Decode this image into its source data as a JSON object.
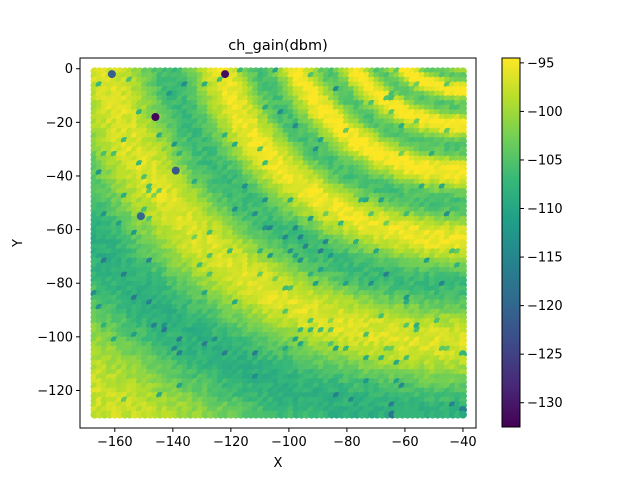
{
  "chart_data": {
    "type": "heatmap",
    "title": "ch_gain(dbm)",
    "xlabel": "X",
    "ylabel": "Y",
    "xlim": [
      -172,
      -35.5
    ],
    "ylim": [
      -134,
      4
    ],
    "xticks": [
      -160,
      -140,
      -120,
      -100,
      -80,
      -60,
      -40
    ],
    "xtick_labels": [
      "−160",
      "−140",
      "−120",
      "−100",
      "−80",
      "−60",
      "−40"
    ],
    "yticks": [
      0,
      -20,
      -40,
      -60,
      -80,
      -100,
      -120
    ],
    "ytick_labels": [
      "0",
      "−20",
      "−40",
      "−60",
      "−80",
      "−100",
      "−120"
    ],
    "grid": false,
    "point_grid": {
      "x_range": [
        -167,
        -40
      ],
      "y_range": [
        -129,
        -1
      ],
      "columns": 74,
      "rows": 75
    },
    "wave_source": [
      -40,
      22
    ],
    "colorbar": {
      "colormap": "viridis",
      "range": [
        -132.5,
        -94.5
      ],
      "ticks": [
        -95,
        -100,
        -105,
        -110,
        -115,
        -120,
        -125,
        -130
      ],
      "tick_labels": [
        "−95",
        "−100",
        "−105",
        "−110",
        "−115",
        "−120",
        "−125",
        "−130"
      ],
      "stops": [
        "#440154",
        "#482878",
        "#3e4989",
        "#31688e",
        "#26828e",
        "#1f9e89",
        "#35b779",
        "#6ece58",
        "#b5de2b",
        "#fde725"
      ]
    },
    "deep_fade_points": [
      {
        "x": -122,
        "y": -2,
        "value": -131
      },
      {
        "x": -146,
        "y": -18,
        "value": -132
      },
      {
        "x": -161,
        "y": -2,
        "value": -121
      },
      {
        "x": -139,
        "y": -38,
        "value": -122
      },
      {
        "x": -151,
        "y": -55,
        "value": -120
      }
    ]
  }
}
